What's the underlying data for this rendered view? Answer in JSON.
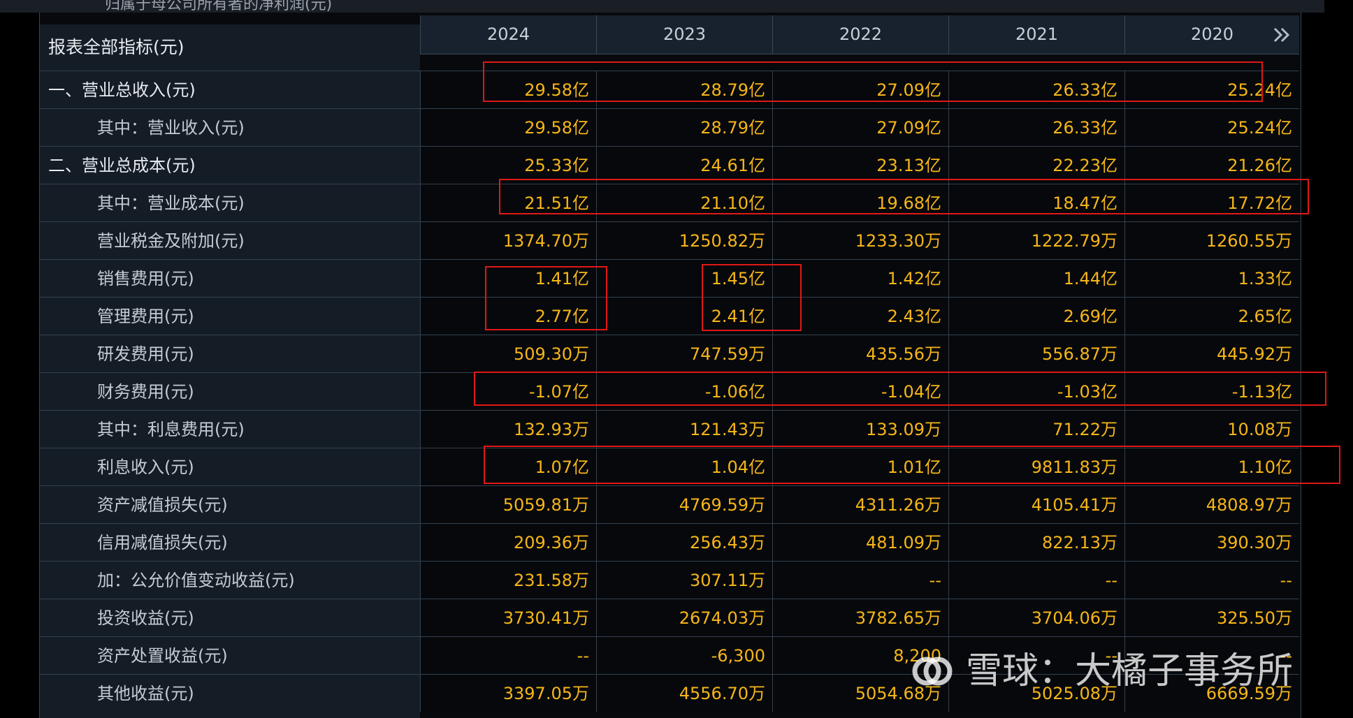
{
  "clipped_header_text": "归属于母公司所有者的净利润(元)",
  "corner_title": "报表全部指标(元)",
  "years": [
    "2024",
    "2023",
    "2022",
    "2021",
    "2020"
  ],
  "rows": [
    {
      "label": "一、营业总收入(元)",
      "level": "top",
      "values": [
        "29.58亿",
        "28.79亿",
        "27.09亿",
        "26.33亿",
        "25.24亿"
      ]
    },
    {
      "label": "其中：营业收入(元)",
      "level": "sub",
      "values": [
        "29.58亿",
        "28.79亿",
        "27.09亿",
        "26.33亿",
        "25.24亿"
      ]
    },
    {
      "label": "二、营业总成本(元)",
      "level": "top",
      "values": [
        "25.33亿",
        "24.61亿",
        "23.13亿",
        "22.23亿",
        "21.26亿"
      ]
    },
    {
      "label": "其中：营业成本(元)",
      "level": "sub",
      "values": [
        "21.51亿",
        "21.10亿",
        "19.68亿",
        "18.47亿",
        "17.72亿"
      ]
    },
    {
      "label": "营业税金及附加(元)",
      "level": "sub",
      "values": [
        "1374.70万",
        "1250.82万",
        "1233.30万",
        "1222.79万",
        "1260.55万"
      ]
    },
    {
      "label": "销售费用(元)",
      "level": "sub",
      "values": [
        "1.41亿",
        "1.45亿",
        "1.42亿",
        "1.44亿",
        "1.33亿"
      ]
    },
    {
      "label": "管理费用(元)",
      "level": "sub",
      "values": [
        "2.77亿",
        "2.41亿",
        "2.43亿",
        "2.69亿",
        "2.65亿"
      ]
    },
    {
      "label": "研发费用(元)",
      "level": "sub",
      "values": [
        "509.30万",
        "747.59万",
        "435.56万",
        "556.87万",
        "445.92万"
      ]
    },
    {
      "label": "财务费用(元)",
      "level": "sub",
      "values": [
        "-1.07亿",
        "-1.06亿",
        "-1.04亿",
        "-1.03亿",
        "-1.13亿"
      ]
    },
    {
      "label": "其中：利息费用(元)",
      "level": "sub",
      "values": [
        "132.93万",
        "121.43万",
        "133.09万",
        "71.22万",
        "10.08万"
      ]
    },
    {
      "label": "利息收入(元)",
      "level": "sub",
      "values": [
        "1.07亿",
        "1.04亿",
        "1.01亿",
        "9811.83万",
        "1.10亿"
      ]
    },
    {
      "label": "资产减值损失(元)",
      "level": "sub",
      "values": [
        "5059.81万",
        "4769.59万",
        "4311.26万",
        "4105.41万",
        "4808.97万"
      ]
    },
    {
      "label": "信用减值损失(元)",
      "level": "sub",
      "values": [
        "209.36万",
        "256.43万",
        "481.09万",
        "822.13万",
        "390.30万"
      ]
    },
    {
      "label": "加：公允价值变动收益(元)",
      "level": "sub",
      "values": [
        "231.58万",
        "307.11万",
        "--",
        "--",
        "--"
      ]
    },
    {
      "label": "投资收益(元)",
      "level": "sub",
      "values": [
        "3730.41万",
        "2674.03万",
        "3782.65万",
        "3704.06万",
        "325.50万"
      ]
    },
    {
      "label": "资产处置收益(元)",
      "level": "sub",
      "values": [
        "--",
        "-6,300",
        "8,200",
        "--",
        "--"
      ]
    },
    {
      "label": "其他收益(元)",
      "level": "sub",
      "values": [
        "3397.05万",
        "4556.70万",
        "5054.68万",
        "5025.08万",
        "6669.59万"
      ]
    }
  ],
  "watermark": {
    "brand": "雪球",
    "separator": "：",
    "author": "大橘子事务所"
  },
  "colors": {
    "value": "#f7b618",
    "annotation": "#e01818",
    "background": "#07090c",
    "label_bg": "#141c26"
  }
}
